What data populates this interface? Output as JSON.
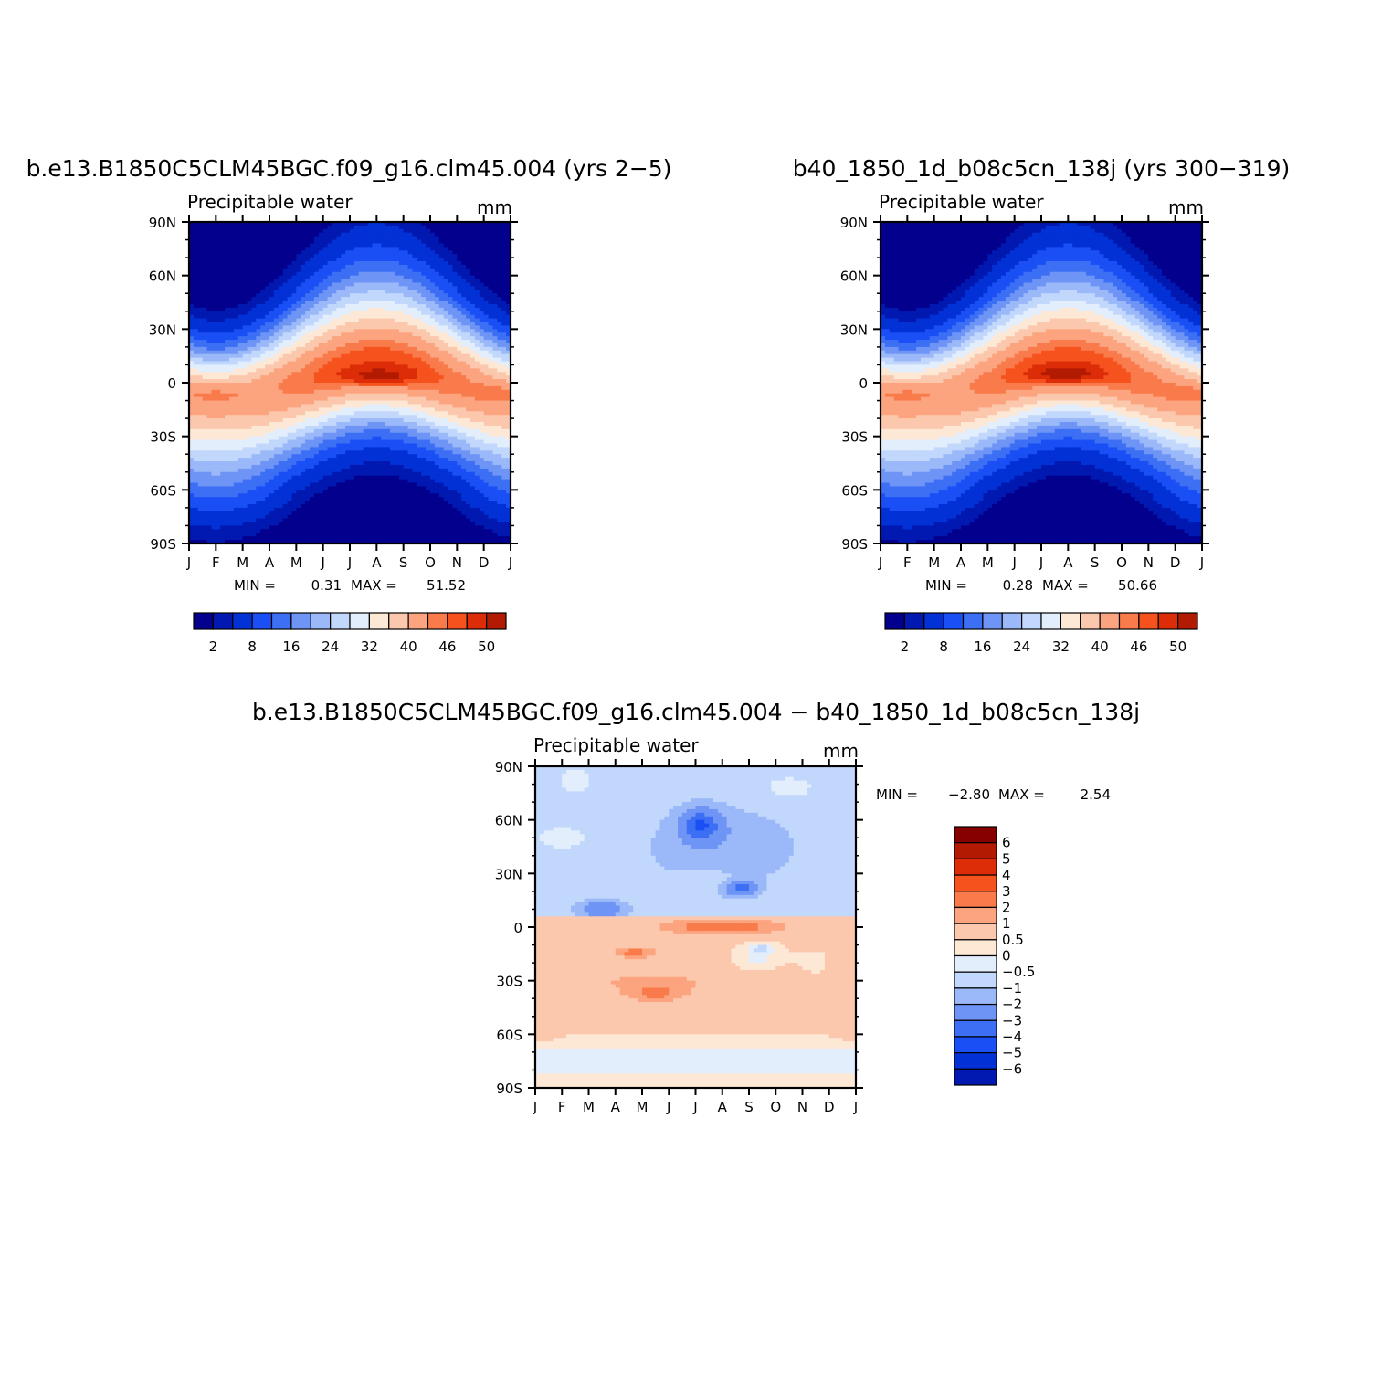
{
  "chart_data": [
    {
      "id": "panel-a",
      "type": "heatmap",
      "title": "b.e13.B1850C5CLM45BGC.f09_g16.clm45.004 (yrs 2−5)",
      "left_label": "Precipitable water",
      "right_label": "mm",
      "x_tick_labels": [
        "J",
        "F",
        "M",
        "A",
        "M",
        "J",
        "J",
        "A",
        "S",
        "O",
        "N",
        "D",
        "J"
      ],
      "y_tick_labels": [
        "90N",
        "60N",
        "30N",
        "0",
        "30S",
        "60S",
        "90S"
      ],
      "ylim": [
        -90,
        90
      ],
      "xlabel": "",
      "ylabel": "",
      "min_label": "MIN =",
      "min_value": "0.31",
      "max_label": "MAX =",
      "max_value": "51.52",
      "levels": [
        2,
        4,
        8,
        12,
        16,
        20,
        24,
        28,
        32,
        36,
        40,
        44,
        46,
        48,
        50
      ],
      "legend_labels": [
        "2",
        "8",
        "16",
        "24",
        "32",
        "40",
        "46",
        "50"
      ],
      "legend_orientation": "horizontal",
      "peak": {
        "month": 7.1,
        "lat": 3,
        "value": 51.52
      },
      "low_month_peak": 2.0
    },
    {
      "id": "panel-b",
      "type": "heatmap",
      "title": "b40_1850_1d_b08c5cn_138j (yrs 300−319)",
      "left_label": "Precipitable water",
      "right_label": "mm",
      "x_tick_labels": [
        "J",
        "F",
        "M",
        "A",
        "M",
        "J",
        "J",
        "A",
        "S",
        "O",
        "N",
        "D",
        "J"
      ],
      "y_tick_labels": [
        "90N",
        "60N",
        "30N",
        "0",
        "30S",
        "60S",
        "90S"
      ],
      "ylim": [
        -90,
        90
      ],
      "xlabel": "",
      "ylabel": "",
      "min_label": "MIN =",
      "min_value": "0.28",
      "max_label": "MAX =",
      "max_value": "50.66",
      "levels": [
        2,
        4,
        8,
        12,
        16,
        20,
        24,
        28,
        32,
        36,
        40,
        44,
        46,
        48,
        50
      ],
      "legend_labels": [
        "2",
        "8",
        "16",
        "24",
        "32",
        "40",
        "46",
        "50"
      ],
      "legend_orientation": "horizontal",
      "peak": {
        "month": 6.9,
        "lat": 4,
        "value": 50.66
      },
      "low_month_peak": 2.0
    },
    {
      "id": "panel-diff",
      "type": "heatmap",
      "title": "b.e13.B1850C5CLM45BGC.f09_g16.clm45.004 − b40_1850_1d_b08c5cn_138j",
      "left_label": "Precipitable water",
      "right_label": "mm",
      "x_tick_labels": [
        "J",
        "F",
        "M",
        "A",
        "M",
        "J",
        "J",
        "A",
        "S",
        "O",
        "N",
        "D",
        "J"
      ],
      "y_tick_labels": [
        "90N",
        "60N",
        "30N",
        "0",
        "30S",
        "60S",
        "90S"
      ],
      "ylim": [
        -90,
        90
      ],
      "xlabel": "",
      "ylabel": "",
      "min_label": "MIN =",
      "min_value": "−2.80",
      "max_label": "MAX =",
      "max_value": "2.54",
      "levels": [
        -6,
        -5,
        -4,
        -3,
        -2,
        -1,
        -0.5,
        0,
        0.5,
        1,
        2,
        3,
        4,
        5,
        6
      ],
      "legend_labels": [
        "6",
        "5",
        "4",
        "3",
        "2",
        "1",
        "0.5",
        "0",
        "−0.5",
        "−1",
        "−2",
        "−3",
        "−4",
        "−5",
        "−6"
      ],
      "legend_orientation": "vertical"
    }
  ],
  "palette": [
    "#02008c",
    "#0119b0",
    "#0231d6",
    "#1a4ff5",
    "#3d6ff5",
    "#6e95f5",
    "#9bb8f9",
    "#c2d7fc",
    "#e3eefd",
    "#fde8d6",
    "#fcc8ad",
    "#fba47f",
    "#f97a4b",
    "#f5521e",
    "#dd2d08",
    "#b31a02",
    "#870000"
  ]
}
